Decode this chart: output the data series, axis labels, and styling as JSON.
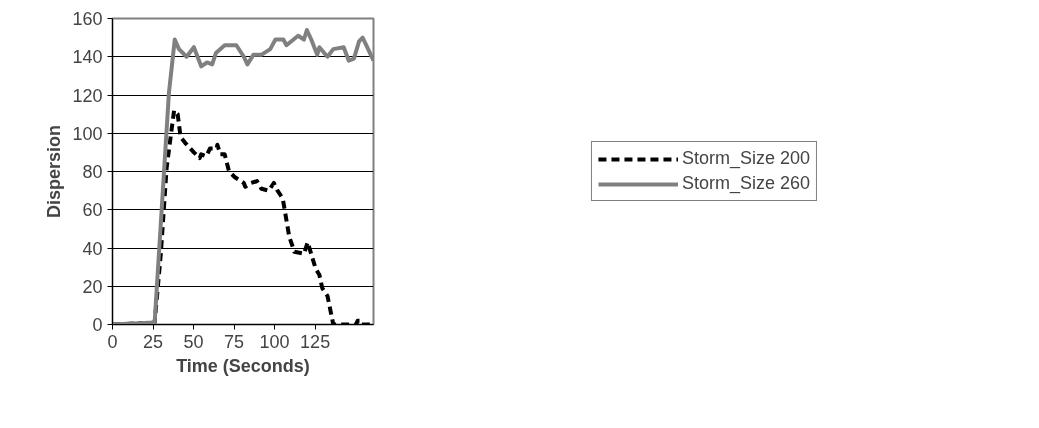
{
  "chart_data": {
    "type": "line",
    "xlabel": "Time (Seconds)",
    "ylabel": "Dispersion",
    "xlim": [
      0,
      161
    ],
    "xticks": [
      0,
      25,
      50,
      75,
      100,
      125
    ],
    "ylim": [
      0,
      160
    ],
    "yticks": [
      0,
      20,
      40,
      60,
      80,
      100,
      120,
      140,
      160
    ],
    "grid": "y",
    "legend": "right",
    "marker": "none",
    "series": [
      {
        "name": "Storm_Size 200",
        "color": "#000000",
        "line_style": "dashed",
        "x": [
          0,
          26,
          29.8,
          33.4,
          38,
          40.2,
          42,
          44.8,
          50.2,
          53.8,
          54.7,
          57.9,
          60.1,
          64.2,
          64.7,
          66.5,
          69.2,
          71.9,
          75.5,
          81,
          81.9,
          85.5,
          89.1,
          91.8,
          96.4,
          99.5,
          101.8,
          105,
          109,
          112.2,
          118.1,
          120.4,
          125.4,
          127.6,
          129.4,
          132.6,
          136.2,
          150.3,
          151.2,
          152.6,
          153.5,
          161
        ],
        "values": [
          0,
          1,
          37,
          82,
          112,
          110,
          98,
          95,
          90,
          87,
          89,
          88,
          92,
          92,
          94,
          89,
          89,
          80,
          77,
          74,
          72,
          74,
          75,
          71,
          70,
          74,
          70,
          66,
          46,
          38,
          37,
          43,
          29,
          26,
          19,
          15,
          0,
          0,
          2,
          2,
          0,
          0
        ]
      },
      {
        "name": "Storm_Size 260",
        "color": "#808080",
        "line_style": "solid",
        "x": [
          0,
          26,
          34.8,
          38.4,
          41,
          45.7,
          50.2,
          54.7,
          58.3,
          61.5,
          63.8,
          69.2,
          76.4,
          81,
          83.2,
          86.9,
          91.8,
          97.3,
          100.5,
          105.4,
          107.3,
          114.5,
          118.1,
          119.9,
          122.6,
          126.3,
          127.6,
          132.6,
          136.2,
          142.6,
          145.7,
          148.9,
          152.1,
          154.3,
          157.1,
          161
        ],
        "values": [
          0,
          1,
          121,
          149,
          144,
          140,
          145,
          135,
          137,
          136,
          142,
          146,
          146,
          140,
          136,
          141,
          141,
          144,
          149,
          149,
          146,
          151,
          149,
          154,
          149,
          141,
          145,
          140,
          144,
          145,
          138,
          139,
          148,
          150,
          145,
          138
        ]
      }
    ]
  }
}
